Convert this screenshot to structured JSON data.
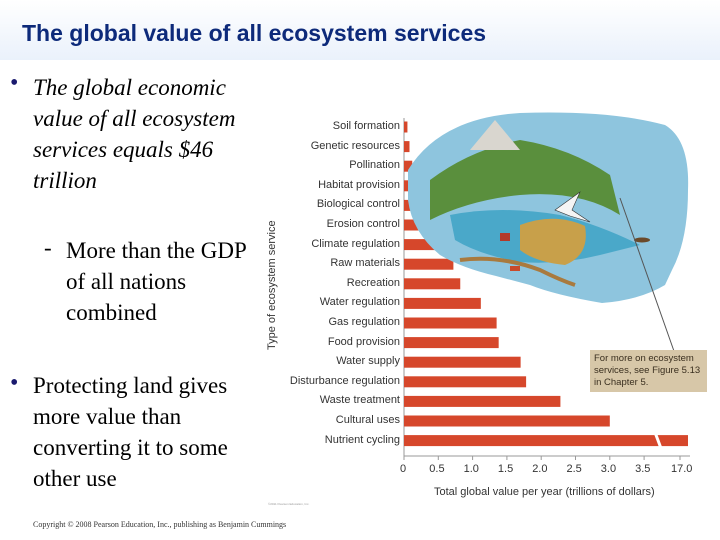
{
  "slide": {
    "title": "The global value of all ecosystem services",
    "bullet1": "The global economic value of all ecosystem services equals $46 trillion",
    "subbullet1_dash": "-",
    "subbullet1": "More than the GDP of all nations combined",
    "bullet2": "Protecting land gives more value than converting it to some other use",
    "bullet_mark": "•",
    "copyright": "Copyright © 2008 Pearson Education, Inc., publishing as Benjamin Cummings",
    "figure_credit": "©2011 Pearson Education, Inc."
  },
  "figure": {
    "note": "For more on ecosystem services, see Figure 5.13 in Chapter 5.",
    "colors": {
      "bar": "#d6472b",
      "panel": "#f3efe6",
      "note": "#d7c7a8"
    }
  },
  "chart_data": {
    "type": "bar",
    "orientation": "horizontal",
    "ylabel": "Type of ecosystem service",
    "xlabel": "Total global value per year (trillions of dollars)",
    "x_ticks": [
      "0",
      "0.5",
      "1.0",
      "1.5",
      "2.0",
      "2.5",
      "3.0",
      "3.5",
      "17.0"
    ],
    "axis_break": "between 3.5 and 17.0",
    "categories": [
      "Soil formation",
      "Genetic resources",
      "Pollination",
      "Habitat provision",
      "Biological control",
      "Erosion control",
      "Climate regulation",
      "Raw materials",
      "Recreation",
      "Water regulation",
      "Gas regulation",
      "Food provision",
      "Water supply",
      "Disturbance regulation",
      "Waste treatment",
      "Cultural uses",
      "Nutrient cycling"
    ],
    "values": [
      0.05,
      0.08,
      0.12,
      0.12,
      0.42,
      0.58,
      0.68,
      0.72,
      0.82,
      1.12,
      1.35,
      1.38,
      1.7,
      1.78,
      2.28,
      3.0,
      17.0
    ]
  }
}
